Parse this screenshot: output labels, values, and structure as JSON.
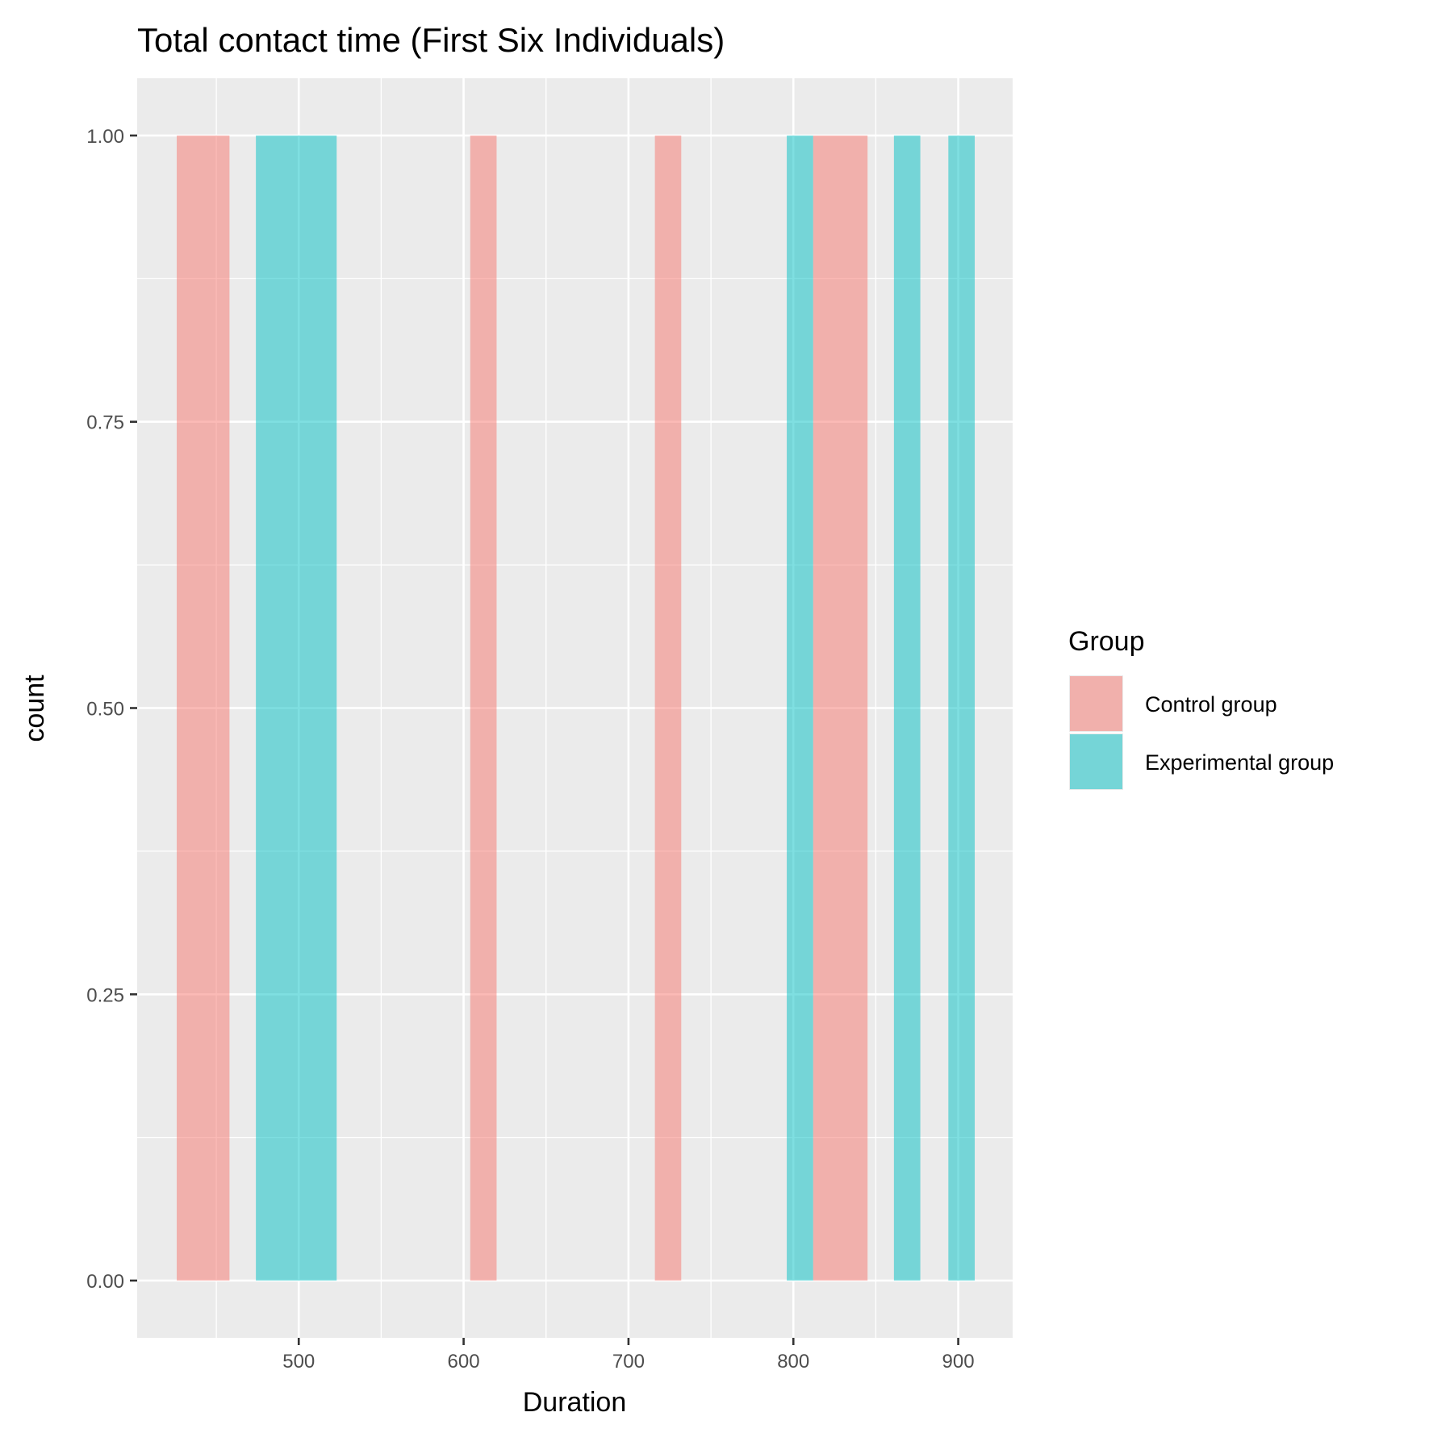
{
  "chart_data": {
    "type": "bar",
    "title": "Total contact time (First Six Individuals)",
    "xlabel": "Duration",
    "ylabel": "count",
    "xlim": [
      402,
      933
    ],
    "ylim": [
      -0.05,
      1.05
    ],
    "x_ticks": [
      500,
      600,
      700,
      800,
      900
    ],
    "x_tick_labels": [
      "500",
      "600",
      "700",
      "800",
      "900"
    ],
    "y_ticks": [
      0,
      0.25,
      0.5,
      0.75,
      1.0
    ],
    "y_tick_labels": [
      "0.00",
      "0.25",
      "0.50",
      "0.75",
      "1.00"
    ],
    "grid": true,
    "legend": {
      "title": "Group",
      "position": "right",
      "entries": [
        "Control group",
        "Experimental group"
      ]
    },
    "series": [
      {
        "name": "Control group",
        "color": "#F8766D",
        "bars": [
          {
            "x0": 426,
            "x1": 458,
            "count": 1
          },
          {
            "x0": 604,
            "x1": 620,
            "count": 1
          },
          {
            "x0": 716,
            "x1": 732,
            "count": 1
          },
          {
            "x0": 812,
            "x1": 845,
            "count": 1
          }
        ]
      },
      {
        "name": "Experimental group",
        "color": "#00BFC4",
        "bars": [
          {
            "x0": 474,
            "x1": 523,
            "count": 1
          },
          {
            "x0": 796,
            "x1": 812,
            "count": 1
          },
          {
            "x0": 861,
            "x1": 877,
            "count": 1
          },
          {
            "x0": 894,
            "x1": 910,
            "count": 1
          }
        ]
      }
    ]
  }
}
